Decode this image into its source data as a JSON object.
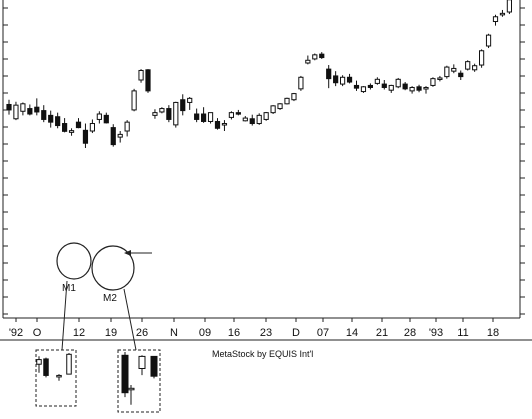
{
  "chart_data": {
    "type": "candlestick",
    "x_tick_labels": [
      "'92",
      "O",
      "12",
      "19",
      "26",
      "N",
      "09",
      "16",
      "23",
      "D",
      "07",
      "14",
      "21",
      "28",
      "'93",
      "11",
      "18"
    ],
    "credit": "MetaStock by EQUIS Int'l",
    "annotations": [
      "M1",
      "M2"
    ],
    "grid": false,
    "candles": [
      {
        "o": 62.8,
        "h": 64.2,
        "l": 59.8,
        "c": 61.2,
        "color": "black"
      },
      {
        "o": 62.6,
        "h": 63.6,
        "l": 58.2,
        "c": 58.6,
        "color": "white"
      },
      {
        "o": 60.8,
        "h": 63.4,
        "l": 59.6,
        "c": 63.0,
        "color": "white"
      },
      {
        "o": 61.6,
        "h": 62.8,
        "l": 59.6,
        "c": 60.0,
        "color": "black"
      },
      {
        "o": 62.0,
        "h": 64.6,
        "l": 59.6,
        "c": 60.6,
        "color": "black"
      },
      {
        "o": 61.0,
        "h": 62.6,
        "l": 57.6,
        "c": 58.4,
        "color": "black"
      },
      {
        "o": 59.6,
        "h": 61.0,
        "l": 56.0,
        "c": 57.6,
        "color": "black"
      },
      {
        "o": 59.2,
        "h": 60.4,
        "l": 55.8,
        "c": 56.6,
        "color": "black"
      },
      {
        "o": 57.2,
        "h": 58.8,
        "l": 54.6,
        "c": 54.9,
        "color": "black"
      },
      {
        "o": 54.6,
        "h": 55.8,
        "l": 53.6,
        "c": 55.1,
        "color": "white"
      },
      {
        "o": 57.6,
        "h": 58.8,
        "l": 55.8,
        "c": 56.0,
        "color": "black"
      },
      {
        "o": 55.2,
        "h": 57.2,
        "l": 50.0,
        "c": 51.4,
        "color": "black"
      },
      {
        "o": 55.0,
        "h": 58.4,
        "l": 54.4,
        "c": 57.2,
        "color": "white"
      },
      {
        "o": 58.4,
        "h": 60.8,
        "l": 57.2,
        "c": 60.0,
        "color": "white"
      },
      {
        "o": 59.6,
        "h": 60.4,
        "l": 57.2,
        "c": 57.4,
        "color": "black"
      },
      {
        "o": 56.0,
        "h": 57.0,
        "l": 50.4,
        "c": 51.0,
        "color": "black"
      },
      {
        "o": 54.0,
        "h": 55.0,
        "l": 51.6,
        "c": 53.2,
        "color": "white"
      },
      {
        "o": 55.0,
        "h": 58.2,
        "l": 53.4,
        "c": 57.6,
        "color": "white"
      },
      {
        "o": 61.2,
        "h": 67.4,
        "l": 60.8,
        "c": 66.8,
        "color": "white"
      },
      {
        "o": 70.0,
        "h": 73.2,
        "l": 69.2,
        "c": 72.8,
        "color": "white"
      },
      {
        "o": 73.0,
        "h": 73.2,
        "l": 66.2,
        "c": 66.8,
        "color": "black"
      },
      {
        "o": 59.6,
        "h": 61.4,
        "l": 58.6,
        "c": 60.4,
        "color": "white"
      },
      {
        "o": 60.6,
        "h": 62.0,
        "l": 60.2,
        "c": 61.6,
        "color": "white"
      },
      {
        "o": 61.6,
        "h": 62.6,
        "l": 57.6,
        "c": 58.4,
        "color": "black"
      },
      {
        "o": 56.8,
        "h": 63.6,
        "l": 56.0,
        "c": 63.4,
        "color": "white"
      },
      {
        "o": 64.2,
        "h": 65.8,
        "l": 59.6,
        "c": 61.0,
        "color": "black"
      },
      {
        "o": 63.4,
        "h": 65.0,
        "l": 61.2,
        "c": 64.6,
        "color": "white"
      },
      {
        "o": 60.0,
        "h": 61.6,
        "l": 57.6,
        "c": 58.4,
        "color": "black"
      },
      {
        "o": 60.0,
        "h": 62.0,
        "l": 57.4,
        "c": 57.8,
        "color": "black"
      },
      {
        "o": 57.8,
        "h": 60.4,
        "l": 57.2,
        "c": 60.4,
        "color": "white"
      },
      {
        "o": 57.8,
        "h": 58.8,
        "l": 55.4,
        "c": 55.8,
        "color": "black"
      },
      {
        "o": 57.2,
        "h": 58.2,
        "l": 55.0,
        "c": 57.0,
        "color": "white"
      },
      {
        "o": 59.0,
        "h": 60.8,
        "l": 58.4,
        "c": 60.4,
        "color": "white"
      },
      {
        "o": 60.4,
        "h": 61.2,
        "l": 59.6,
        "c": 60.0,
        "color": "black"
      },
      {
        "o": 58.0,
        "h": 59.4,
        "l": 57.8,
        "c": 58.8,
        "color": "white"
      },
      {
        "o": 58.6,
        "h": 59.8,
        "l": 56.6,
        "c": 57.2,
        "color": "black"
      },
      {
        "o": 57.2,
        "h": 60.2,
        "l": 56.8,
        "c": 59.6,
        "color": "white"
      },
      {
        "o": 58.4,
        "h": 60.6,
        "l": 58.0,
        "c": 60.4,
        "color": "white"
      },
      {
        "o": 60.4,
        "h": 62.6,
        "l": 60.0,
        "c": 62.4,
        "color": "white"
      },
      {
        "o": 61.6,
        "h": 63.2,
        "l": 61.2,
        "c": 63.0,
        "color": "white"
      },
      {
        "o": 63.0,
        "h": 64.8,
        "l": 62.8,
        "c": 64.6,
        "color": "white"
      },
      {
        "o": 64.2,
        "h": 66.2,
        "l": 63.8,
        "c": 66.0,
        "color": "white"
      },
      {
        "o": 67.4,
        "h": 71.2,
        "l": 66.8,
        "c": 70.8,
        "color": "white"
      },
      {
        "o": 75.0,
        "h": 77.2,
        "l": 74.6,
        "c": 75.8,
        "color": "white"
      },
      {
        "o": 76.2,
        "h": 77.8,
        "l": 75.8,
        "c": 77.4,
        "color": "white"
      },
      {
        "o": 77.6,
        "h": 78.2,
        "l": 76.2,
        "c": 76.6,
        "color": "black"
      },
      {
        "o": 73.2,
        "h": 74.4,
        "l": 67.6,
        "c": 70.4,
        "color": "black"
      },
      {
        "o": 71.2,
        "h": 72.6,
        "l": 68.2,
        "c": 69.2,
        "color": "black"
      },
      {
        "o": 68.8,
        "h": 71.4,
        "l": 68.2,
        "c": 70.8,
        "color": "white"
      },
      {
        "o": 70.8,
        "h": 71.8,
        "l": 69.0,
        "c": 69.4,
        "color": "black"
      },
      {
        "o": 68.4,
        "h": 69.8,
        "l": 66.8,
        "c": 67.6,
        "color": "black"
      },
      {
        "o": 66.6,
        "h": 68.2,
        "l": 66.2,
        "c": 68.0,
        "color": "white"
      },
      {
        "o": 68.4,
        "h": 69.0,
        "l": 67.2,
        "c": 67.8,
        "color": "black"
      },
      {
        "o": 69.0,
        "h": 70.8,
        "l": 68.6,
        "c": 70.2,
        "color": "white"
      },
      {
        "o": 68.8,
        "h": 70.0,
        "l": 67.2,
        "c": 67.8,
        "color": "black"
      },
      {
        "o": 67.0,
        "h": 68.6,
        "l": 66.2,
        "c": 68.4,
        "color": "white"
      },
      {
        "o": 68.0,
        "h": 70.6,
        "l": 67.6,
        "c": 70.2,
        "color": "white"
      },
      {
        "o": 68.8,
        "h": 69.4,
        "l": 67.0,
        "c": 67.4,
        "color": "black"
      },
      {
        "o": 66.8,
        "h": 68.2,
        "l": 66.0,
        "c": 67.8,
        "color": "white"
      },
      {
        "o": 68.0,
        "h": 68.6,
        "l": 66.4,
        "c": 67.0,
        "color": "black"
      },
      {
        "o": 67.4,
        "h": 68.2,
        "l": 66.0,
        "c": 67.8,
        "color": "white"
      },
      {
        "o": 68.4,
        "h": 70.8,
        "l": 68.0,
        "c": 70.4,
        "color": "white"
      },
      {
        "o": 70.2,
        "h": 71.2,
        "l": 69.6,
        "c": 70.6,
        "color": "white"
      },
      {
        "o": 71.0,
        "h": 74.2,
        "l": 70.4,
        "c": 73.8,
        "color": "white"
      },
      {
        "o": 72.6,
        "h": 74.6,
        "l": 72.0,
        "c": 73.4,
        "color": "white"
      },
      {
        "o": 72.0,
        "h": 72.8,
        "l": 70.0,
        "c": 71.0,
        "color": "black"
      },
      {
        "o": 73.2,
        "h": 75.8,
        "l": 72.8,
        "c": 75.4,
        "color": "white"
      },
      {
        "o": 73.0,
        "h": 74.8,
        "l": 72.4,
        "c": 74.2,
        "color": "white"
      },
      {
        "o": 74.4,
        "h": 79.0,
        "l": 73.6,
        "c": 78.6,
        "color": "white"
      },
      {
        "o": 80.0,
        "h": 83.6,
        "l": 79.4,
        "c": 83.2,
        "color": "white"
      },
      {
        "o": 87.2,
        "h": 89.2,
        "l": 86.0,
        "c": 88.6,
        "color": "white"
      },
      {
        "o": 89.2,
        "h": 90.6,
        "l": 88.6,
        "c": 89.6,
        "color": "white"
      },
      {
        "o": 90.0,
        "h": 94.2,
        "l": 89.4,
        "c": 93.6,
        "color": "white"
      },
      {
        "o": 94.6,
        "h": 96.8,
        "l": 94.0,
        "c": 96.2,
        "color": "white"
      }
    ],
    "inset_candles": [
      {
        "group": "M1",
        "o": 58.6,
        "h": 61.0,
        "l": 56.0,
        "c": 60.0,
        "color": "white"
      },
      {
        "group": "M1",
        "o": 60.2,
        "h": 60.6,
        "l": 54.6,
        "c": 55.2,
        "color": "black"
      },
      {
        "group": "M1",
        "o": 54.8,
        "h": 55.6,
        "l": 53.6,
        "c": 55.2,
        "color": "white"
      },
      {
        "group": "M1",
        "o": 55.6,
        "h": 62.0,
        "l": 55.6,
        "c": 61.6,
        "color": "white"
      },
      {
        "group": "M2",
        "o": 61.8,
        "h": 62.4,
        "l": 54.2,
        "c": 55.0,
        "color": "black"
      },
      {
        "group": "M2",
        "o": 55.6,
        "h": 56.4,
        "l": 52.8,
        "c": 55.8,
        "color": "white"
      },
      {
        "group": "M2",
        "o": 59.4,
        "h": 61.8,
        "l": 58.2,
        "c": 61.6,
        "color": "white"
      },
      {
        "group": "M2",
        "o": 61.6,
        "h": 61.6,
        "l": 57.6,
        "c": 58.0,
        "color": "black"
      }
    ]
  }
}
